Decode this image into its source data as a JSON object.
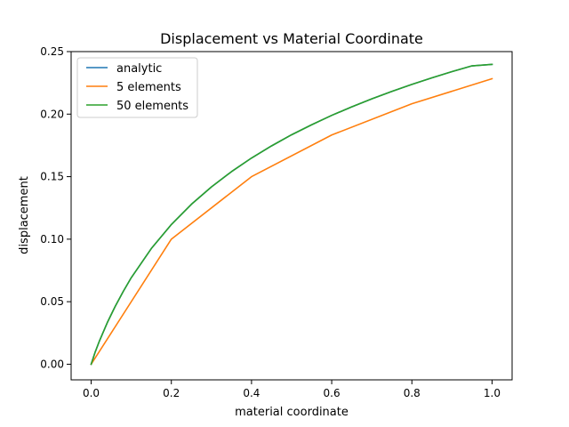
{
  "chart_data": {
    "type": "line",
    "title": "Displacement vs Material Coordinate",
    "xlabel": "material coordinate",
    "ylabel": "displacement",
    "xlim": [
      -0.05,
      1.05
    ],
    "ylim": [
      -0.0125,
      0.25
    ],
    "xticks": [
      0.0,
      0.2,
      0.4,
      0.6,
      0.8,
      1.0
    ],
    "xtick_labels": [
      "0.0",
      "0.2",
      "0.4",
      "0.6",
      "0.8",
      "1.0"
    ],
    "yticks": [
      0.0,
      0.05,
      0.1,
      0.15,
      0.2,
      0.25
    ],
    "ytick_labels": [
      "0.00",
      "0.05",
      "0.10",
      "0.15",
      "0.20",
      "0.25"
    ],
    "grid": false,
    "legend_position": "top-left",
    "series": [
      {
        "name": "analytic",
        "color": "#1f77b4",
        "x": [
          0.0,
          0.01,
          0.02,
          0.04,
          0.06,
          0.08,
          0.1,
          0.15,
          0.2,
          0.25,
          0.3,
          0.35,
          0.4,
          0.45,
          0.5,
          0.55,
          0.6,
          0.65,
          0.7,
          0.75,
          0.8,
          0.85,
          0.9,
          0.95,
          1.0
        ],
        "y": [
          0.0,
          0.0097,
          0.0181,
          0.0331,
          0.0463,
          0.0582,
          0.0692,
          0.0925,
          0.1117,
          0.1279,
          0.1418,
          0.154,
          0.1649,
          0.1746,
          0.1835,
          0.1915,
          0.199,
          0.2058,
          0.2122,
          0.2182,
          0.2238,
          0.229,
          0.234,
          0.2386,
          0.2398
        ]
      },
      {
        "name": "5 elements",
        "color": "#ff7f0e",
        "x": [
          0.0,
          0.2,
          0.4,
          0.6,
          0.8,
          1.0
        ],
        "y": [
          0.0,
          0.1,
          0.15,
          0.1833,
          0.2083,
          0.2283
        ]
      },
      {
        "name": "50 elements",
        "color": "#2ca02c",
        "x": [
          0.0,
          0.01,
          0.02,
          0.04,
          0.06,
          0.08,
          0.1,
          0.15,
          0.2,
          0.25,
          0.3,
          0.35,
          0.4,
          0.45,
          0.5,
          0.55,
          0.6,
          0.65,
          0.7,
          0.75,
          0.8,
          0.85,
          0.9,
          0.95,
          1.0
        ],
        "y": [
          0.0,
          0.0097,
          0.0181,
          0.0331,
          0.0463,
          0.0582,
          0.0692,
          0.0925,
          0.1117,
          0.1279,
          0.1418,
          0.154,
          0.1649,
          0.1746,
          0.1835,
          0.1915,
          0.199,
          0.2058,
          0.2122,
          0.2182,
          0.2238,
          0.229,
          0.234,
          0.2386,
          0.2398
        ]
      }
    ]
  }
}
